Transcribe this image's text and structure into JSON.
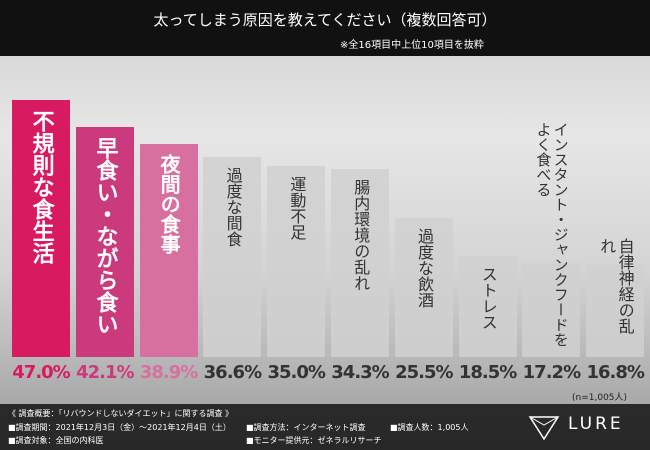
{
  "chart_data": {
    "type": "bar",
    "title": "太ってしまう原因を教えてください（複数回答可）",
    "subtitle": "※全16項目中上位10項目を抜粋",
    "categories": [
      "不規則な食生活",
      "早食い・ながら食い",
      "夜間の食事",
      "過度な間食",
      "運動不足",
      "腸内環境の乱れ",
      "過度な飲酒",
      "ストレス",
      "インスタント・ジャンクフードをよく食べる",
      "自律神経の乱れ"
    ],
    "values": [
      47.0,
      42.1,
      38.9,
      36.6,
      35.0,
      34.3,
      25.5,
      18.5,
      17.2,
      16.8
    ],
    "value_labels": [
      "47.0%",
      "42.1%",
      "38.9%",
      "36.6%",
      "35.0%",
      "34.3%",
      "25.5%",
      "18.5%",
      "17.2%",
      "16.8%"
    ],
    "colors": [
      "#d81b60",
      "#cc3a7e",
      "#d8709f",
      "#d0d0d0",
      "#d0d0d0",
      "#d0d0d0",
      "#d0d0d0",
      "#d0d0d0",
      "#d0d0d0",
      "#d0d0d0"
    ],
    "note": "(n=1,005人)"
  },
  "footer": {
    "heading": "《 調査概要：「リバウンドしないダイエット」に関する調査 》",
    "items": [
      "■調査期間：2021年12月3日（金）～2021年12月4日（土）",
      "■調査対象：全国の内科医",
      "■調査方法：インターネット調査",
      "■モニター提供元：ゼネラルリサーチ",
      "■調査人数：1,005人"
    ],
    "logo": "LURE"
  }
}
